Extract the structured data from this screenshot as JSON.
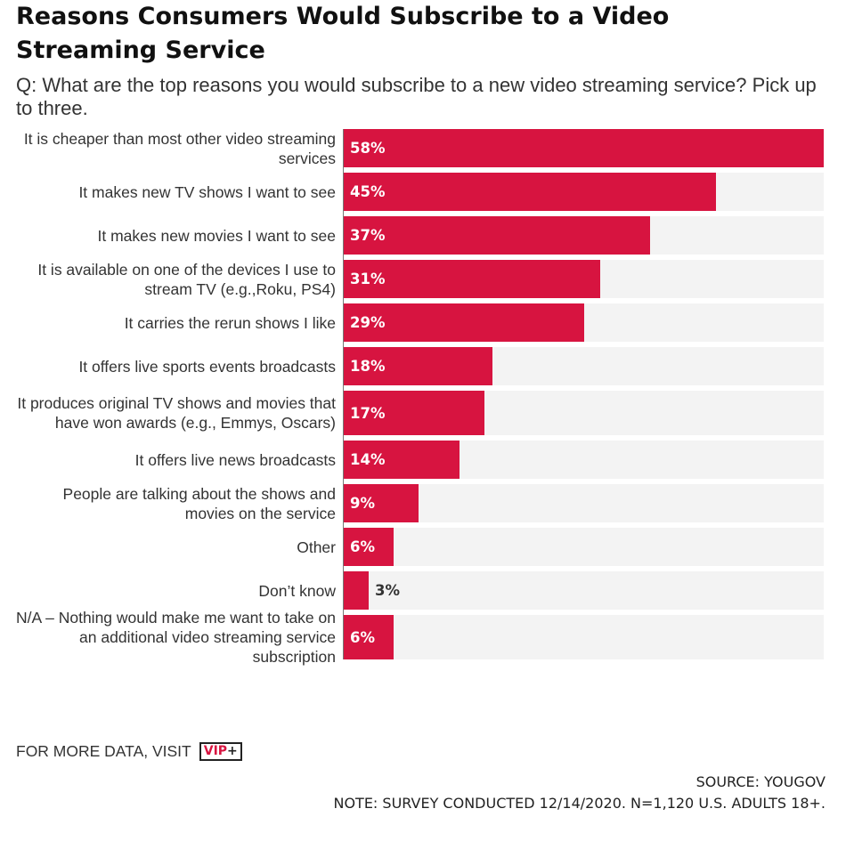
{
  "chart_data": {
    "type": "bar",
    "orientation": "horizontal",
    "title": "Reasons Consumers Would Subscribe to a Video Streaming Service",
    "subtitle": "Q: What are the top reasons you would subscribe to a new video streaming service? Pick up to three.",
    "categories": [
      "It is cheaper than most other video streaming services",
      "It makes new TV shows I want to see",
      "It makes new movies I want to see",
      "It is available on one of the devices I use to stream TV (e.g.,Roku, PS4)",
      "It carries the rerun shows I like",
      "It offers live sports events broadcasts",
      "It produces original TV shows and movies that have won awards (e.g., Emmys, Oscars)",
      "It offers live news broadcasts",
      "People are talking about the shows and movies on the service",
      "Other",
      "Don’t know",
      "N/A – Nothing would make me want to take on an additional video streaming service subscription"
    ],
    "values": [
      58,
      45,
      37,
      31,
      29,
      18,
      17,
      14,
      9,
      6,
      3,
      6
    ],
    "value_labels": [
      "58%",
      "45%",
      "37%",
      "31%",
      "29%",
      "18%",
      "17%",
      "14%",
      "9%",
      "6%",
      "3%",
      "6%"
    ],
    "xlim": [
      0,
      58
    ],
    "unit": "%",
    "legend": "none",
    "grid": false
  },
  "footer": {
    "visit_text": "FOR MORE DATA, VISIT",
    "vip_label": "VIP",
    "vip_plus": "+",
    "source": "SOURCE: YOUGOV",
    "note": "NOTE: SURVEY CONDUCTED 12/14/2020. N=1,120 U.S. ADULTS 18+."
  },
  "colors": {
    "bar": "#d71440",
    "track": "#f3f3f3",
    "value_inside": "#ffffff",
    "value_outside": "#333333"
  }
}
